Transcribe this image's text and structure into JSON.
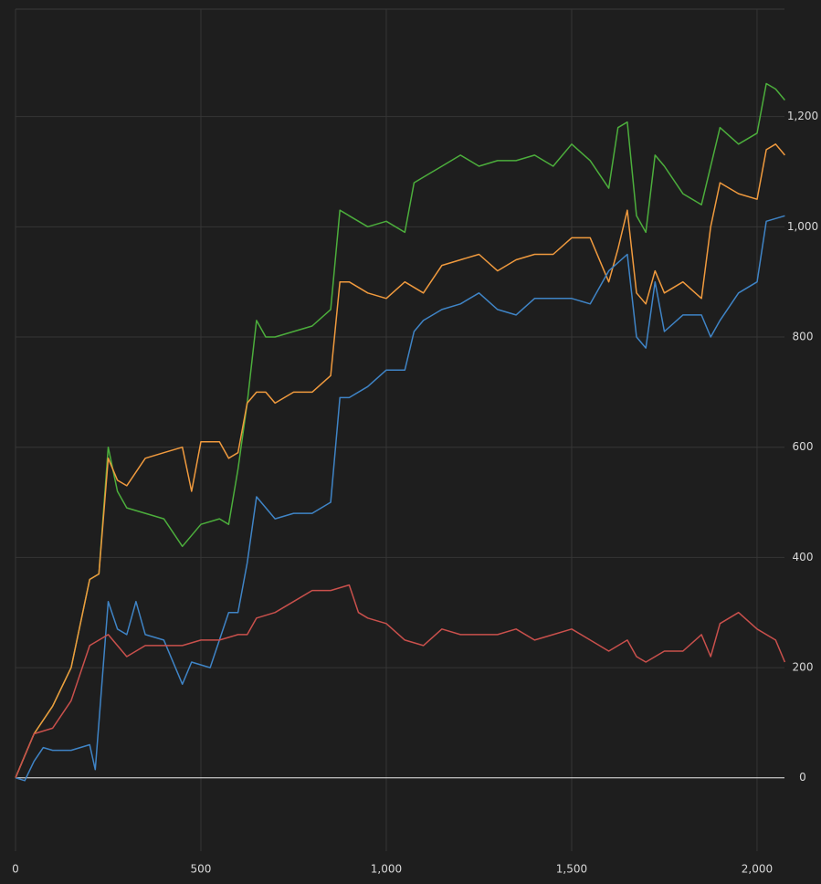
{
  "chart_data": {
    "type": "line",
    "xlim": [
      0,
      2074
    ],
    "ylim": [
      -133,
      1395
    ],
    "xticks": [
      0,
      500,
      {
        "value": 1000,
        "label": "1,000"
      },
      {
        "value": 1500,
        "label": "1,500"
      },
      {
        "value": 2000,
        "label": "2,000"
      }
    ],
    "yticks": [
      0,
      200,
      400,
      600,
      800,
      {
        "value": 1000,
        "label": "1,000"
      },
      {
        "value": 1200,
        "label": "1,200"
      }
    ],
    "grid": true,
    "zero_line": true,
    "series": [
      {
        "color": "#4cae3c",
        "x": [
          0,
          25,
          50,
          100,
          150,
          200,
          225,
          250,
          275,
          300,
          350,
          400,
          450,
          500,
          550,
          575,
          600,
          625,
          650,
          675,
          700,
          750,
          800,
          850,
          875,
          900,
          950,
          1000,
          1050,
          1075,
          1100,
          1150,
          1200,
          1250,
          1300,
          1350,
          1400,
          1450,
          1500,
          1550,
          1600,
          1625,
          1650,
          1675,
          1700,
          1725,
          1750,
          1800,
          1850,
          1900,
          1950,
          2000,
          2025,
          2050,
          2075
        ],
        "values": [
          0,
          40,
          80,
          130,
          200,
          360,
          370,
          600,
          520,
          490,
          480,
          470,
          420,
          460,
          470,
          460,
          560,
          680,
          830,
          800,
          800,
          810,
          820,
          850,
          1030,
          1020,
          1000,
          1010,
          990,
          1080,
          1090,
          1110,
          1130,
          1110,
          1120,
          1120,
          1130,
          1110,
          1150,
          1120,
          1070,
          1180,
          1190,
          1020,
          990,
          1130,
          1110,
          1060,
          1040,
          1180,
          1150,
          1170,
          1260,
          1250,
          1230
        ]
      },
      {
        "color": "#f09a3e",
        "x": [
          0,
          25,
          50,
          100,
          150,
          200,
          225,
          250,
          275,
          300,
          350,
          400,
          450,
          475,
          500,
          550,
          575,
          600,
          625,
          650,
          675,
          700,
          750,
          800,
          850,
          875,
          900,
          950,
          1000,
          1050,
          1100,
          1150,
          1200,
          1250,
          1300,
          1350,
          1400,
          1450,
          1500,
          1550,
          1600,
          1625,
          1650,
          1675,
          1700,
          1725,
          1750,
          1800,
          1850,
          1875,
          1900,
          1950,
          2000,
          2025,
          2050,
          2075
        ],
        "values": [
          0,
          40,
          80,
          130,
          200,
          360,
          370,
          580,
          540,
          530,
          580,
          590,
          600,
          520,
          610,
          610,
          580,
          590,
          680,
          700,
          700,
          680,
          700,
          700,
          730,
          900,
          900,
          880,
          870,
          900,
          880,
          930,
          940,
          950,
          920,
          940,
          950,
          950,
          980,
          980,
          900,
          960,
          1030,
          880,
          860,
          920,
          880,
          900,
          870,
          1000,
          1080,
          1060,
          1050,
          1140,
          1150,
          1130
        ]
      },
      {
        "color": "#3f84c6",
        "x": [
          0,
          25,
          50,
          75,
          100,
          150,
          200,
          215,
          225,
          250,
          275,
          300,
          325,
          350,
          400,
          450,
          475,
          525,
          575,
          600,
          625,
          650,
          700,
          750,
          800,
          850,
          875,
          900,
          950,
          1000,
          1050,
          1075,
          1100,
          1150,
          1200,
          1250,
          1300,
          1350,
          1400,
          1450,
          1500,
          1550,
          1600,
          1650,
          1675,
          1700,
          1725,
          1750,
          1800,
          1850,
          1875,
          1900,
          1950,
          2000,
          2025,
          2075
        ],
        "values": [
          0,
          -5,
          30,
          55,
          50,
          50,
          60,
          15,
          100,
          320,
          270,
          260,
          320,
          260,
          250,
          170,
          210,
          200,
          300,
          300,
          390,
          510,
          470,
          480,
          480,
          500,
          690,
          690,
          710,
          740,
          740,
          810,
          830,
          850,
          860,
          880,
          850,
          840,
          870,
          870,
          870,
          860,
          920,
          950,
          800,
          780,
          900,
          810,
          840,
          840,
          800,
          830,
          880,
          900,
          1010,
          1020
        ]
      },
      {
        "color": "#c9504c",
        "x": [
          0,
          25,
          50,
          100,
          150,
          200,
          250,
          275,
          300,
          350,
          400,
          450,
          500,
          550,
          600,
          625,
          650,
          700,
          750,
          800,
          850,
          900,
          925,
          950,
          1000,
          1050,
          1100,
          1150,
          1200,
          1250,
          1300,
          1350,
          1400,
          1450,
          1500,
          1550,
          1600,
          1650,
          1675,
          1700,
          1750,
          1800,
          1850,
          1875,
          1900,
          1950,
          2000,
          2050,
          2075
        ],
        "values": [
          0,
          40,
          80,
          90,
          140,
          240,
          260,
          240,
          220,
          240,
          240,
          240,
          250,
          250,
          260,
          260,
          290,
          300,
          320,
          340,
          340,
          350,
          300,
          290,
          280,
          250,
          240,
          270,
          260,
          260,
          260,
          270,
          250,
          260,
          270,
          250,
          230,
          250,
          220,
          210,
          230,
          230,
          260,
          220,
          280,
          300,
          270,
          250,
          210
        ]
      }
    ]
  }
}
